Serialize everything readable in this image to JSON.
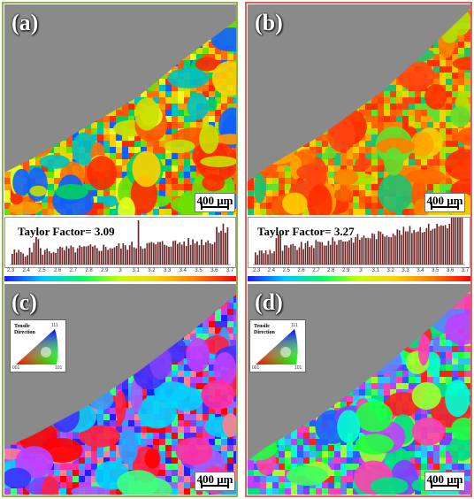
{
  "panels": [
    {
      "label": "(a)",
      "scale": "400 μm",
      "taylor": "Taylor Factor= 3.09"
    },
    {
      "label": "(b)",
      "scale": "400 μm",
      "taylor": "Taylor Factor= 3.27"
    },
    {
      "label": "(c)",
      "scale": "400 μm"
    },
    {
      "label": "(d)",
      "scale": "400 μm"
    }
  ],
  "ipf": {
    "title_line1": "Tensile",
    "title_line2": "Direction",
    "v001": "001",
    "v101": "101",
    "v111": "111"
  },
  "ticks": [
    "2.3",
    "2.4",
    "2.5",
    "2.6",
    "2.7",
    "2.8",
    "2.9",
    "3",
    "3.1",
    "3.2",
    "3.3",
    "3.4",
    "3.5",
    "3.6",
    "3.7"
  ],
  "colors": {
    "frame_left": "#8fb04a",
    "frame_right": "#e0605a",
    "background": "#8a8a8a",
    "hist_bar": "#6b2a2a"
  }
}
